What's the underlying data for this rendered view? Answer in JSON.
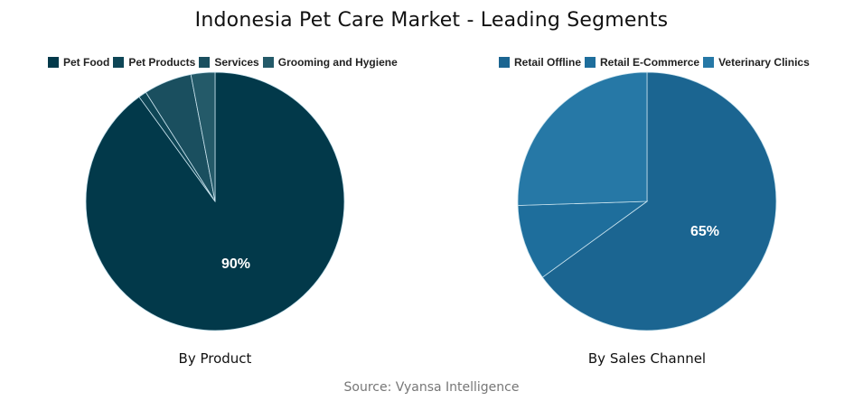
{
  "title": "Indonesia Pet Care Market - Leading Segments",
  "source": "Source: Vyansa Intelligence",
  "chart_data": [
    {
      "type": "pie",
      "title": "By Product",
      "categories": [
        "Pet Food",
        "Pet Products",
        "Services",
        "Grooming and Hygiene"
      ],
      "values": [
        90,
        1,
        6,
        3
      ],
      "colors": [
        "#02394a",
        "#0e4656",
        "#1a4f5f",
        "#245a69"
      ],
      "labels_shown": {
        "Pet Food": "90%"
      },
      "start_angle": "top, clockwise",
      "legend_position": "top"
    },
    {
      "type": "pie",
      "title": "By Sales Channel",
      "categories": [
        "Retail Offline",
        "Retail E-Commerce",
        "Veterinary Clinics"
      ],
      "values": [
        65,
        9.5,
        25.5
      ],
      "colors": [
        "#1b6591",
        "#1e6e9c",
        "#2678a6"
      ],
      "labels_shown": {
        "Retail Offline": "65%"
      },
      "start_angle": "top, clockwise",
      "legend_position": "top"
    }
  ],
  "left": {
    "legend": [
      "Pet Food",
      "Pet Products",
      "Services",
      "Grooming and Hygiene"
    ],
    "label": "90%",
    "subtitle": "By Product"
  },
  "right": {
    "legend": [
      "Retail Offline",
      "Retail E-Commerce",
      "Veterinary Clinics"
    ],
    "label": "65%",
    "subtitle": "By Sales Channel"
  }
}
